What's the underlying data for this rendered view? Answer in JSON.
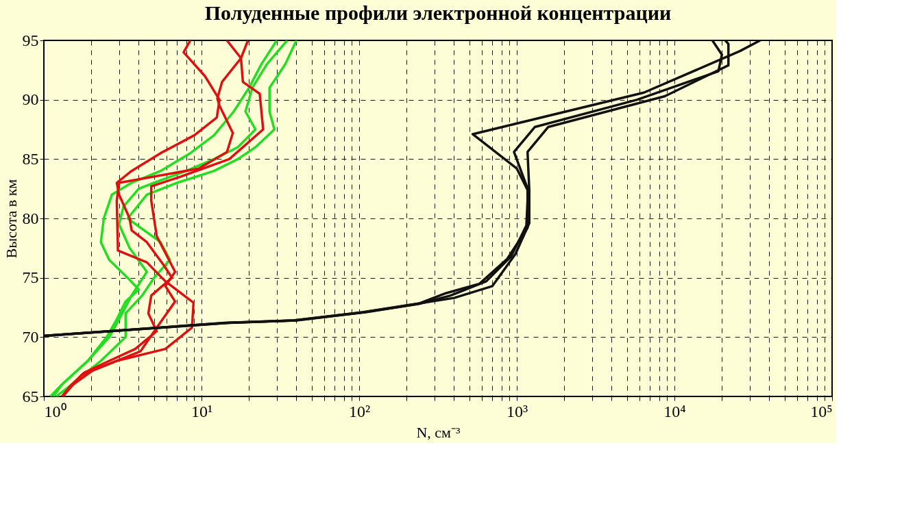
{
  "chart_data": {
    "type": "line",
    "title": "Полуденные профили электронной концентрации",
    "xlabel": "N, см⁻³",
    "ylabel": "Высота в км",
    "log": "x",
    "grid": true,
    "xlim": [
      1,
      100000
    ],
    "ylim": [
      65,
      95
    ],
    "xticks": [
      {
        "value": 1,
        "label": "10⁰"
      },
      {
        "value": 2,
        "label": null
      },
      {
        "value": 3,
        "label": null
      },
      {
        "value": 4,
        "label": null
      },
      {
        "value": 5,
        "label": null
      },
      {
        "value": 6,
        "label": null
      },
      {
        "value": 7,
        "label": null
      },
      {
        "value": 8,
        "label": null
      },
      {
        "value": 9,
        "label": null
      },
      {
        "value": 10,
        "label": "10¹"
      },
      {
        "value": 20,
        "label": null
      },
      {
        "value": 30,
        "label": null
      },
      {
        "value": 40,
        "label": null
      },
      {
        "value": 50,
        "label": null
      },
      {
        "value": 60,
        "label": null
      },
      {
        "value": 70,
        "label": null
      },
      {
        "value": 80,
        "label": null
      },
      {
        "value": 90,
        "label": null
      },
      {
        "value": 100,
        "label": "10²"
      },
      {
        "value": 200,
        "label": null
      },
      {
        "value": 300,
        "label": null
      },
      {
        "value": 400,
        "label": null
      },
      {
        "value": 500,
        "label": null
      },
      {
        "value": 600,
        "label": null
      },
      {
        "value": 700,
        "label": null
      },
      {
        "value": 800,
        "label": null
      },
      {
        "value": 900,
        "label": null
      },
      {
        "value": 1000,
        "label": "10³"
      },
      {
        "value": 2000,
        "label": null
      },
      {
        "value": 3000,
        "label": null
      },
      {
        "value": 4000,
        "label": null
      },
      {
        "value": 5000,
        "label": null
      },
      {
        "value": 6000,
        "label": null
      },
      {
        "value": 7000,
        "label": null
      },
      {
        "value": 8000,
        "label": null
      },
      {
        "value": 9000,
        "label": null
      },
      {
        "value": 10000,
        "label": "10⁴"
      },
      {
        "value": 20000,
        "label": null
      },
      {
        "value": 30000,
        "label": null
      },
      {
        "value": 40000,
        "label": null
      },
      {
        "value": 50000,
        "label": null
      },
      {
        "value": 60000,
        "label": null
      },
      {
        "value": 70000,
        "label": null
      },
      {
        "value": 80000,
        "label": null
      },
      {
        "value": 90000,
        "label": null
      },
      {
        "value": 100000,
        "label": "10⁵"
      }
    ],
    "yticks": [
      65,
      70,
      75,
      80,
      85,
      90,
      95
    ],
    "series": [
      {
        "color": "#22dd22",
        "x": [
          40,
          34,
          27,
          27,
          29,
          22,
          17,
          12,
          7,
          4.5,
          3.4,
          5.5,
          6.3,
          5,
          4.2,
          3.3,
          3.3,
          2.3,
          1.5,
          1.2
        ],
        "values": [
          95,
          93,
          91,
          89,
          87.5,
          86,
          85,
          84,
          83,
          82,
          80,
          78,
          76.5,
          75,
          73.5,
          72,
          70,
          68,
          66,
          65
        ]
      },
      {
        "color": "#22dd22",
        "x": [
          35,
          26,
          21,
          19,
          22,
          17,
          12,
          8,
          5,
          4,
          3.2,
          3,
          3.5,
          4.5,
          3.6,
          3,
          2.6,
          1.9,
          1.3,
          1.15
        ],
        "values": [
          95,
          93,
          91,
          89,
          87.5,
          86,
          85,
          84,
          83,
          82.5,
          81,
          79.5,
          77.5,
          75.5,
          73.5,
          71.5,
          70,
          68,
          66,
          65
        ]
      },
      {
        "color": "#22dd22",
        "x": [
          30,
          24,
          20,
          16,
          12,
          8.5,
          5.5,
          3.6,
          2.7,
          2.4,
          2.3,
          2.6,
          3.4,
          4,
          3.3,
          2.9,
          2.5,
          1.9,
          1.3,
          1.1
        ],
        "values": [
          95,
          93,
          91,
          89,
          87,
          85.5,
          84,
          83,
          82,
          80,
          78,
          76.5,
          75,
          74,
          73,
          71.5,
          70,
          68,
          66,
          65
        ]
      },
      {
        "color": "#dd1111",
        "x": [
          8.5,
          7.7,
          10.5,
          13,
          12.5,
          9,
          5.5,
          3.6,
          2.9,
          3,
          3.5,
          3.6,
          4.5,
          5.8,
          6.5,
          4.8,
          4.6,
          5.2,
          3.8,
          2.6,
          1.8,
          1.5,
          1.3
        ],
        "values": [
          95,
          94,
          92,
          90,
          88.5,
          87,
          85.5,
          84,
          83,
          82,
          80,
          79,
          78,
          76,
          75,
          73.5,
          72,
          70.5,
          69,
          68,
          67,
          66,
          65
        ]
      },
      {
        "color": "#dd1111",
        "x": [
          14.5,
          17.8,
          18.3,
          23.4,
          24.6,
          15,
          7.3,
          4.8,
          4.8,
          5.2,
          6.8,
          5.9,
          6.8,
          5.2,
          4.1,
          2.05,
          1.46,
          1.32
        ],
        "values": [
          95,
          93.5,
          91.5,
          90.5,
          87.5,
          85,
          83.5,
          82.7,
          81.5,
          78.5,
          75.5,
          74.3,
          73,
          70.8,
          68.8,
          67.2,
          65.8,
          65
        ]
      },
      {
        "color": "#dd1111",
        "x": [
          19.7,
          17.8,
          13.5,
          12.6,
          13,
          15.8,
          14.5,
          9.6,
          3,
          2.9,
          2.95,
          4.5,
          5.9,
          8.9,
          8.7,
          5.9,
          2.9,
          1.73,
          1.4,
          1.32
        ],
        "values": [
          95,
          93.5,
          91.5,
          90.1,
          89.5,
          87.2,
          85.6,
          84.2,
          83,
          81.5,
          77.3,
          76.3,
          74.7,
          72.9,
          70.8,
          69,
          68,
          66.8,
          65.4,
          65
        ]
      },
      {
        "color": "#111111",
        "x": [
          1,
          14.5,
          39,
          107,
          236,
          355,
          580,
          870,
          1170,
          1170,
          1000,
          525,
          6400,
          26000,
          35000
        ],
        "values": [
          70.1,
          71.2,
          71.4,
          72.1,
          72.8,
          73.7,
          74.5,
          76.6,
          79.2,
          82.4,
          84.2,
          87.1,
          90.6,
          94.1,
          95
        ]
      },
      {
        "color": "#111111",
        "x": [
          1,
          15,
          40,
          110,
          240,
          380,
          640,
          920,
          1150,
          1180,
          960,
          1300,
          5800,
          19000,
          20000,
          17400
        ],
        "values": [
          70.1,
          71.2,
          71.4,
          72.1,
          72.8,
          73.5,
          74.7,
          76.8,
          79.4,
          82.4,
          85.6,
          87.7,
          90,
          92.4,
          93.8,
          95
        ]
      },
      {
        "color": "#111111",
        "x": [
          1,
          14,
          38,
          105,
          230,
          400,
          700,
          980,
          1200,
          1200,
          1170,
          1580,
          8700,
          22000,
          22000,
          21000
        ],
        "values": [
          70.1,
          71.2,
          71.4,
          72.1,
          72.8,
          73.3,
          74.3,
          77,
          79.6,
          82.4,
          85.6,
          87.7,
          90.3,
          92.9,
          94.7,
          95
        ]
      }
    ]
  }
}
